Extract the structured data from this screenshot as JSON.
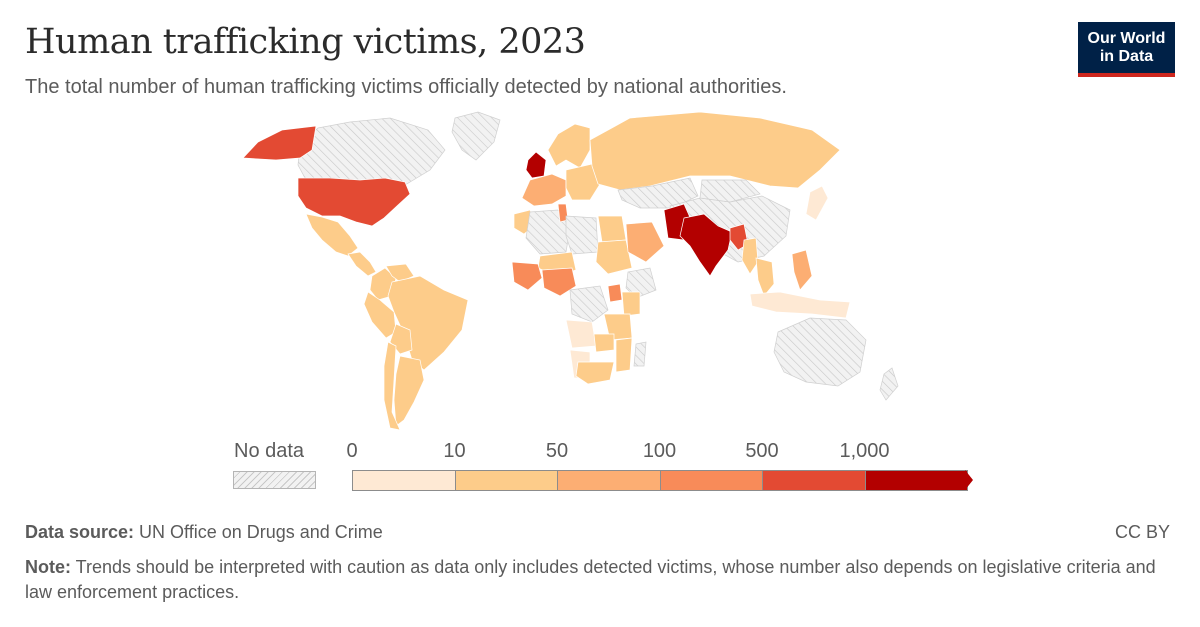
{
  "header": {
    "title": "Human trafficking victims, 2023",
    "subtitle": "The total number of human trafficking victims officially detected by national authorities."
  },
  "logo": {
    "line1": "Our World",
    "line2": "in Data"
  },
  "legend": {
    "no_data_label": "No data",
    "ticks": [
      "0",
      "10",
      "50",
      "100",
      "500",
      "1,000"
    ],
    "bin_colors": [
      "#fee9d4",
      "#fdcc8a",
      "#fcae73",
      "#f88b59",
      "#e34a33",
      "#b30000"
    ],
    "no_data_color": "#e6e6e6"
  },
  "footer": {
    "source_label": "Data source:",
    "source_text": " UN Office on Drugs and Crime",
    "license": "CC BY",
    "note_label": "Note:",
    "note_text": " Trends should be interpreted with caution as data only includes detected victims, whose number also depends on legislative criteria and law enforcement practices."
  },
  "chart_data": {
    "type": "choropleth",
    "year": "2023",
    "scale_bins": [
      "0",
      "10",
      "50",
      "100",
      "500",
      "1,000"
    ],
    "regions": [
      {
        "name": "Canada",
        "bin": "no data"
      },
      {
        "name": "Greenland",
        "bin": "no data"
      },
      {
        "name": "Alaska (United States)",
        "bin": "500-1,000"
      },
      {
        "name": "United States",
        "bin": "500-1,000"
      },
      {
        "name": "Mexico",
        "bin": "10-50"
      },
      {
        "name": "Central America",
        "bin": "10-50"
      },
      {
        "name": "Colombia",
        "bin": "10-50"
      },
      {
        "name": "Venezuela",
        "bin": "10-50"
      },
      {
        "name": "Brazil",
        "bin": "10-50"
      },
      {
        "name": "Peru",
        "bin": "10-50"
      },
      {
        "name": "Bolivia",
        "bin": "10-50"
      },
      {
        "name": "Argentina",
        "bin": "10-50"
      },
      {
        "name": "Chile",
        "bin": "10-50"
      },
      {
        "name": "United Kingdom",
        "bin": "1,000+"
      },
      {
        "name": "Western Europe",
        "bin": "50-100"
      },
      {
        "name": "Scandinavia",
        "bin": "10-50"
      },
      {
        "name": "Eastern Europe",
        "bin": "10-50"
      },
      {
        "name": "Russia",
        "bin": "10-50"
      },
      {
        "name": "Kazakhstan",
        "bin": "no data"
      },
      {
        "name": "China",
        "bin": "no data"
      },
      {
        "name": "Mongolia",
        "bin": "no data"
      },
      {
        "name": "Japan",
        "bin": "0-10"
      },
      {
        "name": "Pakistan",
        "bin": "1,000+"
      },
      {
        "name": "India",
        "bin": "1,000+"
      },
      {
        "name": "Bangladesh",
        "bin": "500-1,000"
      },
      {
        "name": "Myanmar",
        "bin": "10-50"
      },
      {
        "name": "Thailand",
        "bin": "10-50"
      },
      {
        "name": "Philippines",
        "bin": "50-100"
      },
      {
        "name": "Indonesia",
        "bin": "0-10"
      },
      {
        "name": "Australia",
        "bin": "no data"
      },
      {
        "name": "Morocco",
        "bin": "10-50"
      },
      {
        "name": "Algeria",
        "bin": "no data"
      },
      {
        "name": "Tunisia",
        "bin": "100-500"
      },
      {
        "name": "Libya",
        "bin": "no data"
      },
      {
        "name": "Egypt",
        "bin": "10-50"
      },
      {
        "name": "Sudan",
        "bin": "10-50"
      },
      {
        "name": "Saudi Arabia",
        "bin": "50-100"
      },
      {
        "name": "Niger",
        "bin": "10-50"
      },
      {
        "name": "Nigeria",
        "bin": "100-500"
      },
      {
        "name": "West Africa coast",
        "bin": "100-500"
      },
      {
        "name": "Ethiopia",
        "bin": "no data"
      },
      {
        "name": "Uganda",
        "bin": "100-500"
      },
      {
        "name": "Kenya",
        "bin": "10-50"
      },
      {
        "name": "DR Congo",
        "bin": "no data"
      },
      {
        "name": "Tanzania",
        "bin": "10-50"
      },
      {
        "name": "Angola",
        "bin": "0-10"
      },
      {
        "name": "Zambia",
        "bin": "10-50"
      },
      {
        "name": "Mozambique",
        "bin": "10-50"
      },
      {
        "name": "Namibia",
        "bin": "0-10"
      },
      {
        "name": "South Africa",
        "bin": "10-50"
      },
      {
        "name": "Madagascar",
        "bin": "no data"
      },
      {
        "name": "New Zealand",
        "bin": "no data"
      }
    ]
  }
}
